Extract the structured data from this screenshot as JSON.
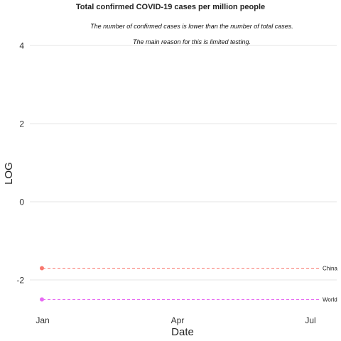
{
  "chart_data": {
    "type": "line",
    "title": "Total confirmed COVID-19 cases per million people",
    "subtitle_line1": "The number of confirmed cases is lower than the number of total cases.",
    "subtitle_line2": "The main reason for this is limited testing.",
    "xlabel": "Date",
    "ylabel": "LOG",
    "x_ticks": [
      "Jan",
      "Apr",
      "Jul"
    ],
    "y_ticks": [
      4,
      2,
      0,
      -2
    ],
    "ylim": [
      -2.8,
      4.2
    ],
    "grid": true,
    "legend": "none",
    "series": [
      {
        "name": "China",
        "color": "#f8766d",
        "y": -1.7
      },
      {
        "name": "World",
        "color": "#e76bf3",
        "y": -2.5
      }
    ]
  }
}
